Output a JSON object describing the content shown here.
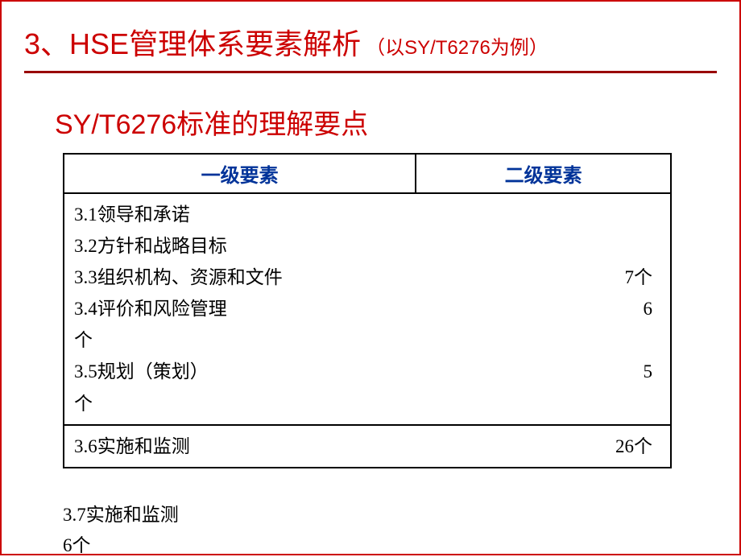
{
  "colors": {
    "accent_red": "#cc0000",
    "underline": "#990000",
    "header_blue": "#003399",
    "border_black": "#000000",
    "frame_red": "#cc0000",
    "bg_white": "#ffffff"
  },
  "title": {
    "number": "3、",
    "hse": "HSE",
    "main": "管理体系要素解析",
    "sub": "（以SY/T6276为例）"
  },
  "subtitle": "SY/T6276标准的理解要点",
  "table": {
    "headers": {
      "col1": "一级要素",
      "col2": "二级要素"
    },
    "body1": {
      "lines": [
        {
          "left": "3.1领导和承诺",
          "right": ""
        },
        {
          "left": "3.2方针和战略目标",
          "right": ""
        },
        {
          "left": "3.3组织机构、资源和文件",
          "right": "7个"
        },
        {
          "left": "3.4评价和风险管理",
          "right": "6"
        },
        {
          "left": "个",
          "right": ""
        },
        {
          "left": "3.5规划（策划）",
          "right": "5"
        },
        {
          "left": "个",
          "right": ""
        }
      ]
    },
    "body2": {
      "lines": [
        {
          "left": "3.6实施和监测",
          "right": "26个"
        }
      ]
    }
  },
  "overflow": {
    "line1": "3.7实施和监测",
    "line2": "6个"
  }
}
